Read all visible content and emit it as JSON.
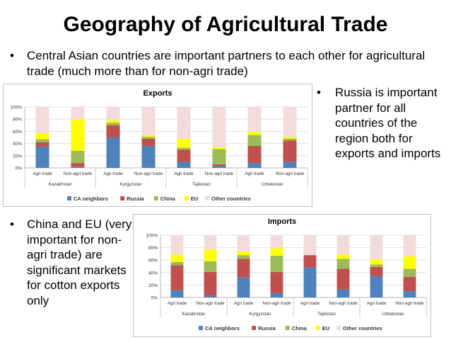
{
  "slide": {
    "title": "Geography of Agricultural Trade",
    "bullets": [
      "Central Asian countries are important partners to each other for agricultural trade (much more than for non-agri trade)",
      "Russia is important partner for all countries of the region both for exports and imports",
      "China and EU (very important for non-agri trade) are significant markets for cotton exports only"
    ]
  },
  "colors": {
    "CA neighbors": "#4f81bd",
    "Russia": "#c0504d",
    "China": "#9bbb59",
    "EU": "#ffff00",
    "Other countries": "#f2dcdb"
  },
  "chart_data": [
    {
      "type": "bar",
      "stacked": true,
      "title": "Exports",
      "ylim": [
        0,
        100
      ],
      "yticks": [
        "0%",
        "20%",
        "40%",
        "60%",
        "80%",
        "100%"
      ],
      "categories": [
        "Agri trade",
        "Non-agri trade",
        "Agri trade",
        "Non-agri trade",
        "Agri trade",
        "Non-agri trade",
        "Agri trade",
        "Non-agri trade"
      ],
      "groups": [
        "Kazakhstan",
        "Kyrgyzstan",
        "Tajikistan",
        "Uzbekistan"
      ],
      "legend_position": "bottom",
      "grid": true,
      "series": [
        {
          "name": "CA neighbors",
          "values": [
            35,
            2,
            50,
            36,
            10,
            3,
            8,
            10
          ]
        },
        {
          "name": "Russia",
          "values": [
            7,
            6,
            20,
            12,
            20,
            3,
            28,
            35
          ]
        },
        {
          "name": "China",
          "values": [
            5,
            20,
            4,
            3,
            3,
            25,
            18,
            3
          ]
        },
        {
          "name": "EU",
          "values": [
            10,
            52,
            4,
            2,
            15,
            3,
            5,
            3
          ]
        },
        {
          "name": "Other countries",
          "values": [
            43,
            20,
            22,
            47,
            52,
            66,
            41,
            49
          ]
        }
      ]
    },
    {
      "type": "bar",
      "stacked": true,
      "title": "Imports",
      "ylim": [
        0,
        100
      ],
      "yticks": [
        "0%",
        "20%",
        "40%",
        "60%",
        "80%",
        "100%"
      ],
      "categories": [
        "Agri trade",
        "Non-agri trade",
        "Agri trade",
        "Non-agri trade",
        "Agri trade",
        "Non-agri trade",
        "Agri trade",
        "Non-agri trade"
      ],
      "groups": [
        "Kazakhstan",
        "Kyrgyzstan",
        "Tajikistan",
        "Uzbekistan"
      ],
      "legend_position": "bottom",
      "grid": true,
      "series": [
        {
          "name": "CA neighbors",
          "values": [
            12,
            3,
            32,
            7,
            48,
            13,
            34,
            10
          ]
        },
        {
          "name": "Russia",
          "values": [
            40,
            38,
            30,
            34,
            20,
            33,
            15,
            23
          ]
        },
        {
          "name": "China",
          "values": [
            5,
            17,
            6,
            26,
            0,
            16,
            4,
            13
          ]
        },
        {
          "name": "EU",
          "values": [
            12,
            19,
            6,
            12,
            0,
            7,
            8,
            20
          ]
        },
        {
          "name": "Other countries",
          "values": [
            31,
            23,
            26,
            21,
            32,
            31,
            39,
            34
          ]
        }
      ]
    }
  ]
}
